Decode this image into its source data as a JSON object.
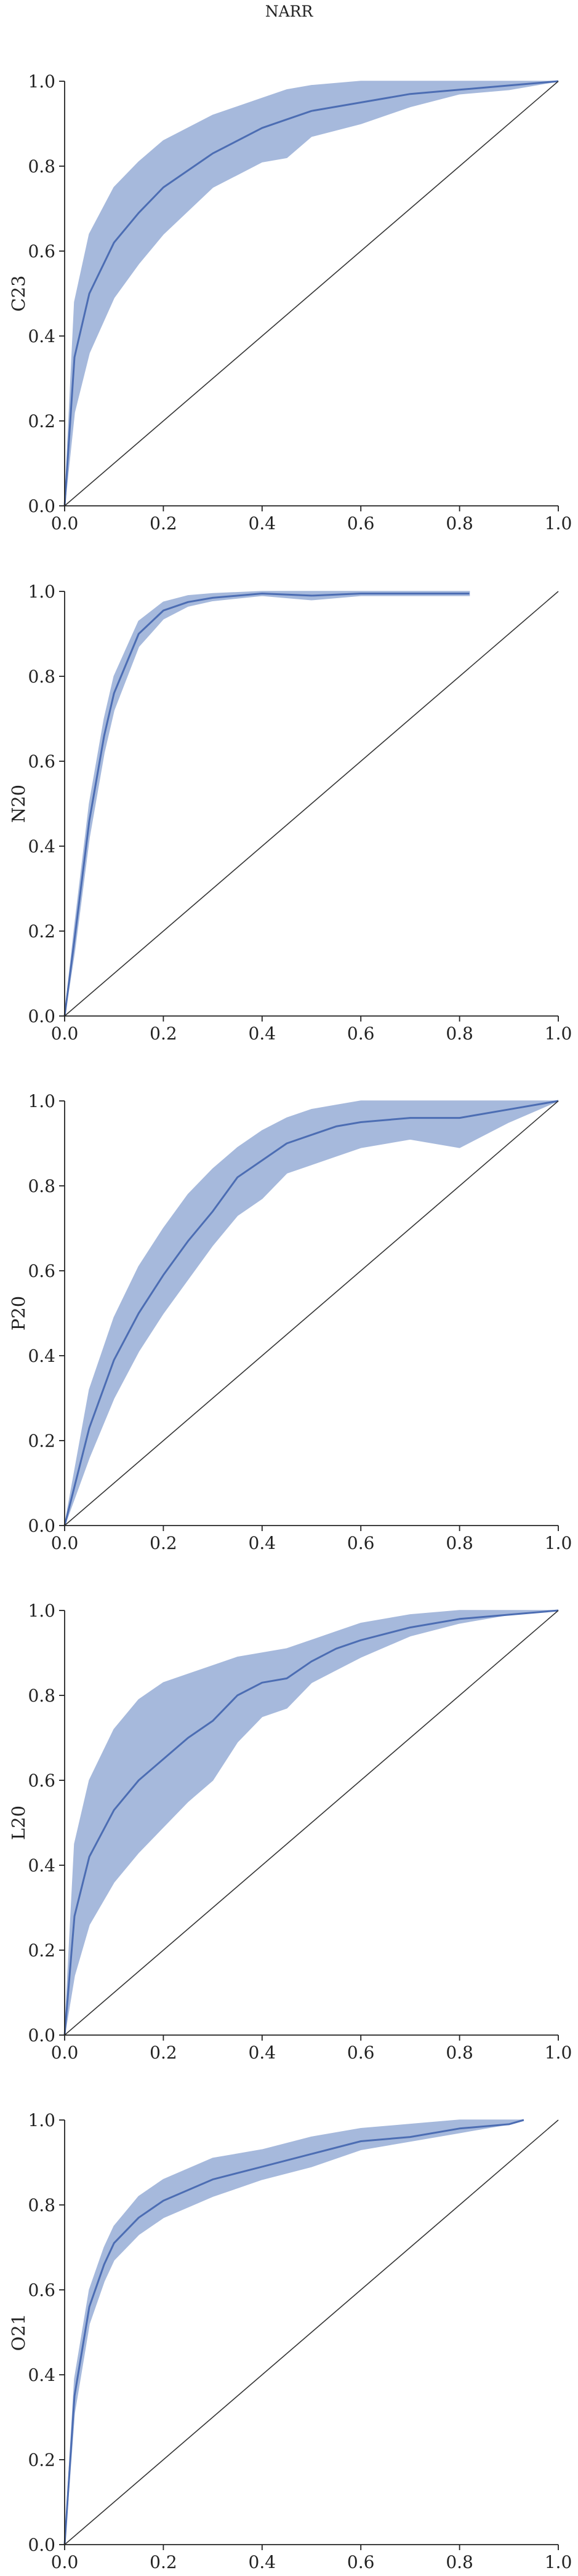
{
  "title": "NARR",
  "colors": {
    "line": "#4c6db3",
    "band": "#a6b9dc",
    "diagonal": "#333333",
    "axis": "#222222"
  },
  "chart_data": [
    {
      "type": "area",
      "ylabel": "C23",
      "xlim": [
        0,
        1
      ],
      "ylim": [
        0,
        1
      ],
      "xticks": [
        "0.0",
        "0.2",
        "0.4",
        "0.6",
        "0.8",
        "1.0"
      ],
      "yticks": [
        "0.0",
        "0.2",
        "0.4",
        "0.6",
        "0.8",
        "1.0"
      ],
      "grid": false,
      "reference_line": [
        [
          0,
          0
        ],
        [
          1,
          1
        ]
      ],
      "series": [
        {
          "x": [
            0,
            0.02,
            0.05,
            0.1,
            0.15,
            0.2,
            0.3,
            0.4,
            0.45,
            0.5,
            0.6,
            0.7,
            0.8,
            0.9,
            1.0
          ],
          "y": [
            0,
            0.35,
            0.5,
            0.62,
            0.69,
            0.75,
            0.83,
            0.89,
            0.91,
            0.93,
            0.95,
            0.97,
            0.98,
            0.99,
            1.0
          ],
          "lower": [
            0,
            0.22,
            0.36,
            0.49,
            0.57,
            0.64,
            0.75,
            0.81,
            0.82,
            0.87,
            0.9,
            0.94,
            0.97,
            0.98,
            1.0
          ],
          "upper": [
            0,
            0.48,
            0.64,
            0.75,
            0.81,
            0.86,
            0.92,
            0.96,
            0.98,
            0.99,
            1.0,
            1.0,
            1.0,
            1.0,
            1.0
          ]
        }
      ]
    },
    {
      "type": "area",
      "ylabel": "N20",
      "xlim": [
        0,
        1
      ],
      "ylim": [
        0,
        1
      ],
      "xticks": [
        "0.0",
        "0.2",
        "0.4",
        "0.6",
        "0.8",
        "1.0"
      ],
      "yticks": [
        "0.0",
        "0.2",
        "0.4",
        "0.6",
        "0.8",
        "1.0"
      ],
      "grid": false,
      "reference_line": [
        [
          0,
          0
        ],
        [
          1,
          1
        ]
      ],
      "series": [
        {
          "x": [
            0,
            0.02,
            0.05,
            0.08,
            0.1,
            0.15,
            0.2,
            0.25,
            0.3,
            0.4,
            0.5,
            0.6,
            0.7,
            0.82
          ],
          "y": [
            0,
            0.18,
            0.46,
            0.66,
            0.76,
            0.9,
            0.955,
            0.975,
            0.985,
            0.995,
            0.99,
            0.995,
            0.995,
            0.995
          ],
          "lower": [
            0,
            0.15,
            0.42,
            0.62,
            0.72,
            0.87,
            0.935,
            0.965,
            0.978,
            0.99,
            0.98,
            0.99,
            0.99,
            0.99
          ],
          "upper": [
            0,
            0.21,
            0.5,
            0.7,
            0.8,
            0.93,
            0.975,
            0.99,
            0.995,
            1.0,
            1.0,
            1.0,
            1.0,
            1.0
          ]
        }
      ]
    },
    {
      "type": "area",
      "ylabel": "P20",
      "xlim": [
        0,
        1
      ],
      "ylim": [
        0,
        1
      ],
      "xticks": [
        "0.0",
        "0.2",
        "0.4",
        "0.6",
        "0.8",
        "1.0"
      ],
      "yticks": [
        "0.0",
        "0.2",
        "0.4",
        "0.6",
        "0.8",
        "1.0"
      ],
      "grid": false,
      "reference_line": [
        [
          0,
          0
        ],
        [
          1,
          1
        ]
      ],
      "series": [
        {
          "x": [
            0,
            0.05,
            0.1,
            0.15,
            0.2,
            0.25,
            0.3,
            0.35,
            0.4,
            0.45,
            0.5,
            0.55,
            0.6,
            0.7,
            0.8,
            0.9,
            1.0
          ],
          "y": [
            0,
            0.23,
            0.39,
            0.5,
            0.59,
            0.67,
            0.74,
            0.82,
            0.86,
            0.9,
            0.92,
            0.94,
            0.95,
            0.96,
            0.96,
            0.98,
            1.0
          ],
          "lower": [
            0,
            0.16,
            0.3,
            0.41,
            0.5,
            0.58,
            0.66,
            0.73,
            0.77,
            0.83,
            0.85,
            0.87,
            0.89,
            0.91,
            0.89,
            0.95,
            1.0
          ],
          "upper": [
            0,
            0.32,
            0.49,
            0.61,
            0.7,
            0.78,
            0.84,
            0.89,
            0.93,
            0.96,
            0.98,
            0.99,
            1.0,
            1.0,
            1.0,
            1.0,
            1.0
          ]
        }
      ]
    },
    {
      "type": "area",
      "ylabel": "L20",
      "xlim": [
        0,
        1
      ],
      "ylim": [
        0,
        1
      ],
      "xticks": [
        "0.0",
        "0.2",
        "0.4",
        "0.6",
        "0.8",
        "1.0"
      ],
      "yticks": [
        "0.0",
        "0.2",
        "0.4",
        "0.6",
        "0.8",
        "1.0"
      ],
      "grid": false,
      "reference_line": [
        [
          0,
          0
        ],
        [
          1,
          1
        ]
      ],
      "series": [
        {
          "x": [
            0,
            0.02,
            0.05,
            0.1,
            0.15,
            0.2,
            0.25,
            0.3,
            0.35,
            0.4,
            0.45,
            0.5,
            0.55,
            0.6,
            0.7,
            0.8,
            0.9,
            1.0
          ],
          "y": [
            0,
            0.28,
            0.42,
            0.53,
            0.6,
            0.65,
            0.7,
            0.74,
            0.8,
            0.83,
            0.84,
            0.88,
            0.91,
            0.93,
            0.96,
            0.98,
            0.99,
            1.0
          ],
          "lower": [
            0,
            0.14,
            0.26,
            0.36,
            0.43,
            0.49,
            0.55,
            0.6,
            0.69,
            0.75,
            0.77,
            0.83,
            0.86,
            0.89,
            0.94,
            0.97,
            0.99,
            1.0
          ],
          "upper": [
            0,
            0.45,
            0.6,
            0.72,
            0.79,
            0.83,
            0.85,
            0.87,
            0.89,
            0.9,
            0.91,
            0.93,
            0.95,
            0.97,
            0.99,
            1.0,
            1.0,
            1.0
          ]
        }
      ]
    },
    {
      "type": "area",
      "ylabel": "O21",
      "xlim": [
        0,
        1
      ],
      "ylim": [
        0,
        1
      ],
      "xticks": [
        "0.0",
        "0.2",
        "0.4",
        "0.6",
        "0.8",
        "1.0"
      ],
      "yticks": [
        "0.0",
        "0.2",
        "0.4",
        "0.6",
        "0.8",
        "1.0"
      ],
      "grid": false,
      "reference_line": [
        [
          0,
          0
        ],
        [
          1,
          1
        ]
      ],
      "series": [
        {
          "x": [
            0,
            0.02,
            0.05,
            0.08,
            0.1,
            0.15,
            0.2,
            0.3,
            0.4,
            0.5,
            0.6,
            0.7,
            0.8,
            0.9,
            0.93
          ],
          "y": [
            0,
            0.35,
            0.56,
            0.66,
            0.71,
            0.77,
            0.81,
            0.86,
            0.89,
            0.92,
            0.95,
            0.96,
            0.98,
            0.99,
            1.0
          ],
          "lower": [
            0,
            0.31,
            0.52,
            0.62,
            0.67,
            0.73,
            0.77,
            0.82,
            0.86,
            0.89,
            0.93,
            0.95,
            0.97,
            0.99,
            1.0
          ],
          "upper": [
            0,
            0.39,
            0.6,
            0.7,
            0.75,
            0.82,
            0.86,
            0.91,
            0.93,
            0.96,
            0.98,
            0.99,
            1.0,
            1.0,
            1.0
          ]
        }
      ]
    }
  ]
}
